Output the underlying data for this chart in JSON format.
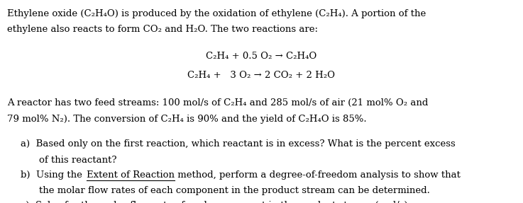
{
  "bg_color": "#ffffff",
  "text_color": "#000000",
  "figsize": [
    7.37,
    2.87
  ],
  "dpi": 100,
  "paragraph1": "Ethylene oxide (C₂H₄O) is produced by the oxidation of ethylene (C₂H₄). A portion of the\nethylene also reacts to form CO₂ and H₂O. The two reactions are:",
  "reaction1": "C₂H₄ + 0.5 O₂ → C₂H₄O",
  "reaction2": "C₂H₄ +   3 O₂ → 2 CO₂ + 2 H₂O",
  "paragraph2": "A reactor has two feed streams: 100 mol/s of C₂H₄ and 285 mol/s of air (21 mol% O₂ and\n79 mol% N₂). The conversion of C₂H₄ is 90% and the yield of C₂H₄O is 85%.",
  "item_a": "a)  Based only on the first reaction, which reactant is in excess? What is the percent excess\n      of this reactant?",
  "item_b_label": "b)  Using the ",
  "item_b_underline": "Extent of Reaction",
  "item_b_rest": " method, perform a degree-of-freedom analysis to show that\n      the molar flow rates of each component in the product stream can be determined.",
  "item_c": "c)  Solve for the molar flow rate of each component in the product stream (mol/s).",
  "font_family": "DejaVu Serif",
  "font_size": 9.5
}
